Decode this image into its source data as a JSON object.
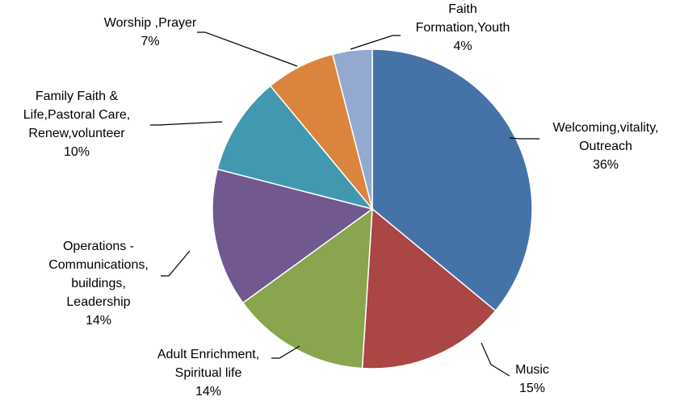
{
  "chart_data": {
    "type": "pie",
    "title": "",
    "start_angle_deg": 0,
    "direction": "clockwise",
    "legend": "none",
    "slices": [
      {
        "label_lines": [
          "Welcoming,vitality,",
          "Outreach"
        ],
        "percent_label": "36%",
        "value": 36,
        "color": "#4573A7"
      },
      {
        "label_lines": [
          "Music"
        ],
        "percent_label": "15%",
        "value": 15,
        "color": "#AA4643"
      },
      {
        "label_lines": [
          "Adult Enrichment,",
          "Spiritual life"
        ],
        "percent_label": "14%",
        "value": 14,
        "color": "#89A54E"
      },
      {
        "label_lines": [
          "Operations -",
          "Communications,",
          "buildings,",
          "Leadership"
        ],
        "percent_label": "14%",
        "value": 14,
        "color": "#71588F"
      },
      {
        "label_lines": [
          "Family Faith &",
          "Life,Pastoral Care,",
          "Renew,volunteer"
        ],
        "percent_label": "10%",
        "value": 10,
        "color": "#4198AF"
      },
      {
        "label_lines": [
          "Worship ,Prayer"
        ],
        "percent_label": "7%",
        "value": 7,
        "color": "#DB843D"
      },
      {
        "label_lines": [
          "Faith",
          "Formation,Youth"
        ],
        "percent_label": "4%",
        "value": 4,
        "color": "#93A9CF"
      }
    ]
  }
}
